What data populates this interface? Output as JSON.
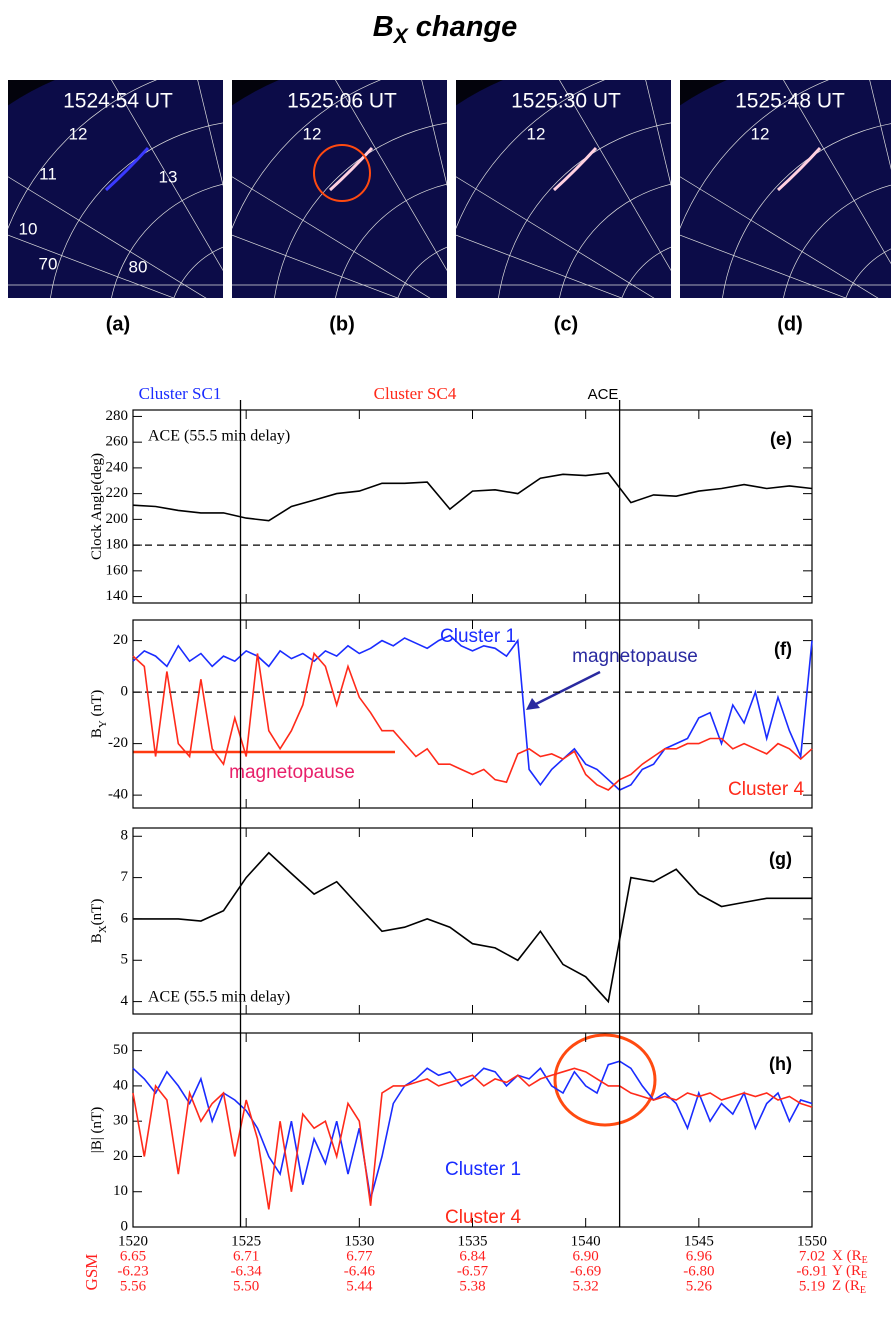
{
  "title_main": "B",
  "title_sub": "X",
  "title_rest": " change",
  "panels": [
    {
      "time": "1524:54 UT",
      "label": "(a)",
      "marks": [
        "12",
        "11",
        "13",
        "10",
        "70",
        "80"
      ]
    },
    {
      "time": "1525:06 UT",
      "label": "(b)",
      "marks": [
        "12"
      ]
    },
    {
      "time": "1525:30 UT",
      "label": "(c)",
      "marks": [
        "12"
      ]
    },
    {
      "time": "1525:48 UT",
      "label": "(d)",
      "marks": [
        "12"
      ]
    }
  ],
  "time_markers": {
    "labels": [
      "Cluster SC1",
      "Cluster SC4",
      "ACE"
    ],
    "times": [
      1524.75,
      1541.5
    ]
  },
  "magnetopause_labels": [
    "magnetopause",
    "magnetopause"
  ],
  "chart_data": [
    {
      "type": "line",
      "ylabel": "Clock Angle(deg)",
      "annotation": "ACE (55.5 min delay)",
      "label": "(e)",
      "xlim": [
        1520,
        1550
      ],
      "ylim": [
        135,
        285
      ],
      "yticks": [
        140,
        160,
        180,
        200,
        220,
        240,
        260,
        280
      ],
      "hline": 180,
      "x": [
        1520,
        1521,
        1522,
        1523,
        1524,
        1525,
        1526,
        1527,
        1528,
        1529,
        1530,
        1531,
        1532,
        1533,
        1534,
        1535,
        1536,
        1537,
        1538,
        1539,
        1540,
        1541,
        1542,
        1543,
        1544,
        1545,
        1546,
        1547,
        1548,
        1549,
        1550
      ],
      "series": [
        {
          "color": "#000000",
          "values": [
            211,
            210,
            207,
            205,
            205,
            201,
            199,
            210,
            215,
            220,
            222,
            228,
            228,
            229,
            208,
            222,
            223,
            220,
            232,
            235,
            234,
            236,
            213,
            219,
            218,
            222,
            224,
            227,
            224,
            226,
            224
          ]
        }
      ]
    },
    {
      "type": "line",
      "ylabel": "B",
      "ylabel_sub": "Y",
      "ylabel_rest": " (nT)",
      "label": "(f)",
      "xlim": [
        1520,
        1550
      ],
      "ylim": [
        -45,
        28
      ],
      "yticks": [
        -40,
        -20,
        0,
        20
      ],
      "hline": 0,
      "x": [
        1520,
        1520.5,
        1521,
        1521.5,
        1522,
        1522.5,
        1523,
        1523.5,
        1524,
        1524.5,
        1525,
        1525.5,
        1526,
        1526.5,
        1527,
        1527.5,
        1528,
        1528.5,
        1529,
        1529.5,
        1530,
        1530.5,
        1531,
        1531.5,
        1532,
        1532.5,
        1533,
        1533.5,
        1534,
        1534.5,
        1535,
        1535.5,
        1536,
        1536.5,
        1537,
        1537.5,
        1538,
        1538.5,
        1539,
        1539.5,
        1540,
        1540.5,
        1541,
        1541.5,
        1542,
        1542.5,
        1543,
        1543.5,
        1544,
        1544.5,
        1545,
        1545.5,
        1546,
        1546.5,
        1547,
        1547.5,
        1548,
        1548.5,
        1549,
        1549.5,
        1550
      ],
      "series": [
        {
          "name": "Cluster 1",
          "color": "#1a2cff",
          "values": [
            12,
            16,
            14,
            10,
            18,
            12,
            15,
            10,
            14,
            12,
            16,
            14,
            10,
            16,
            13,
            15,
            12,
            16,
            14,
            18,
            15,
            17,
            20,
            18,
            21,
            19,
            17,
            20,
            22,
            18,
            16,
            18,
            17,
            14,
            20,
            -30,
            -36,
            -30,
            -26,
            -22,
            -28,
            -30,
            -34,
            -38,
            -36,
            -30,
            -28,
            -22,
            -20,
            -18,
            -10,
            -8,
            -20,
            -5,
            -12,
            0,
            -18,
            -2,
            -15,
            -25,
            20
          ]
        },
        {
          "name": "Cluster 4",
          "color": "#ff2a1a",
          "values": [
            14,
            10,
            -25,
            8,
            -20,
            -25,
            5,
            -22,
            -28,
            -10,
            -25,
            15,
            -15,
            -22,
            -15,
            -5,
            15,
            10,
            -5,
            10,
            -2,
            -8,
            -15,
            -15,
            -20,
            -25,
            -22,
            -28,
            -28,
            -30,
            -32,
            -30,
            -34,
            -35,
            -24,
            -22,
            -25,
            -24,
            -26,
            -23,
            -32,
            -36,
            -38,
            -34,
            -32,
            -28,
            -25,
            -22,
            -22,
            -20,
            -20,
            -18,
            -18,
            -22,
            -20,
            -22,
            -24,
            -20,
            -22,
            -26,
            -22
          ]
        }
      ]
    },
    {
      "type": "line",
      "ylabel": "B",
      "ylabel_sub": "X",
      "ylabel_rest": "(nT)",
      "annotation": "ACE (55.5 min delay)",
      "label": "(g)",
      "xlim": [
        1520,
        1550
      ],
      "ylim": [
        3.7,
        8.2
      ],
      "yticks": [
        4,
        5,
        6,
        7,
        8
      ],
      "x": [
        1520,
        1521,
        1522,
        1523,
        1524,
        1525,
        1526,
        1527,
        1528,
        1529,
        1530,
        1531,
        1532,
        1533,
        1534,
        1535,
        1536,
        1537,
        1538,
        1539,
        1540,
        1541,
        1542,
        1543,
        1544,
        1545,
        1546,
        1547,
        1548,
        1549,
        1550
      ],
      "series": [
        {
          "color": "#000000",
          "values": [
            6.0,
            6.0,
            6.0,
            5.95,
            6.2,
            7.0,
            7.6,
            7.1,
            6.6,
            6.9,
            6.3,
            5.7,
            5.8,
            6.0,
            5.8,
            5.4,
            5.3,
            5.0,
            5.7,
            4.9,
            4.6,
            4.0,
            7.0,
            6.9,
            7.2,
            6.6,
            6.3,
            6.4,
            6.5,
            6.5,
            6.5
          ]
        }
      ]
    },
    {
      "type": "line",
      "ylabel": "|B| (nT)",
      "label": "(h)",
      "xlim": [
        1520,
        1550
      ],
      "ylim": [
        0,
        55
      ],
      "yticks": [
        0,
        10,
        20,
        30,
        40,
        50
      ],
      "xticks": [
        1520,
        1525,
        1530,
        1535,
        1540,
        1545,
        1550
      ],
      "x": [
        1520,
        1520.5,
        1521,
        1521.5,
        1522,
        1522.5,
        1523,
        1523.5,
        1524,
        1524.5,
        1525,
        1525.5,
        1526,
        1526.5,
        1527,
        1527.5,
        1528,
        1528.5,
        1529,
        1529.5,
        1530,
        1530.5,
        1531,
        1531.5,
        1532,
        1532.5,
        1533,
        1533.5,
        1534,
        1534.5,
        1535,
        1535.5,
        1536,
        1536.5,
        1537,
        1537.5,
        1538,
        1538.5,
        1539,
        1539.5,
        1540,
        1540.5,
        1541,
        1541.5,
        1542,
        1542.5,
        1543,
        1543.5,
        1544,
        1544.5,
        1545,
        1545.5,
        1546,
        1546.5,
        1547,
        1547.5,
        1548,
        1548.5,
        1549,
        1549.5,
        1550
      ],
      "series": [
        {
          "name": "Cluster 1",
          "color": "#1a2cff",
          "values": [
            45,
            42,
            38,
            44,
            40,
            35,
            42,
            30,
            38,
            36,
            33,
            28,
            20,
            15,
            30,
            12,
            25,
            18,
            30,
            15,
            28,
            8,
            20,
            35,
            40,
            42,
            45,
            43,
            44,
            40,
            42,
            45,
            44,
            40,
            43,
            42,
            45,
            40,
            38,
            44,
            40,
            38,
            46,
            47,
            45,
            40,
            36,
            38,
            35,
            28,
            38,
            30,
            35,
            32,
            38,
            28,
            35,
            38,
            30,
            36,
            35
          ]
        },
        {
          "name": "Cluster 4",
          "color": "#ff2a1a",
          "values": [
            38,
            20,
            40,
            36,
            15,
            38,
            30,
            35,
            38,
            20,
            36,
            25,
            5,
            30,
            10,
            32,
            28,
            30,
            20,
            35,
            30,
            6,
            38,
            40,
            40,
            41,
            42,
            40,
            41,
            42,
            43,
            40,
            42,
            41,
            43,
            40,
            42,
            43,
            44,
            45,
            44,
            42,
            40,
            40,
            38,
            37,
            36,
            37,
            36,
            38,
            37,
            38,
            36,
            37,
            38,
            37,
            38,
            36,
            37,
            35,
            34
          ]
        }
      ]
    }
  ],
  "gsm": {
    "label": "GSM",
    "unit_sub": "E",
    "rows": [
      {
        "name": "X (R",
        "values": [
          "6.65",
          "6.71",
          "6.77",
          "6.84",
          "6.90",
          "6.96",
          "7.02"
        ]
      },
      {
        "name": "Y (R",
        "values": [
          "-6.23",
          "-6.34",
          "-6.46",
          "-6.57",
          "-6.69",
          "-6.80",
          "-6.91"
        ]
      },
      {
        "name": "Z (R",
        "values": [
          "5.56",
          "5.50",
          "5.44",
          "5.38",
          "5.32",
          "5.26",
          "5.19"
        ]
      }
    ]
  }
}
